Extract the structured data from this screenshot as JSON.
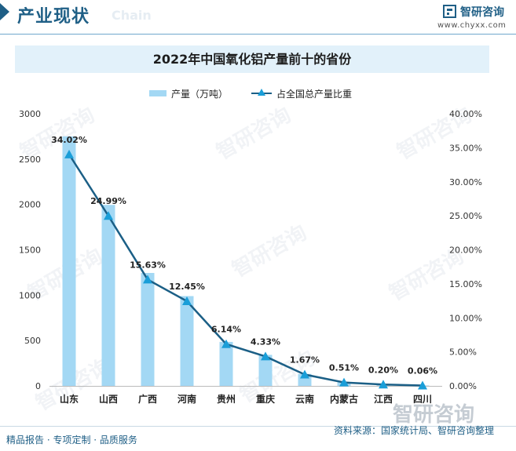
{
  "header": {
    "section_title": "产业现状",
    "ghost_text": "Chain",
    "brand_name": "智研咨询",
    "brand_url": "www.chyxx.com"
  },
  "watermark": {
    "text": "智研咨询"
  },
  "chart_data": {
    "type": "bar",
    "title": "2022年中国氧化铝产量前十的省份",
    "categories": [
      "山东",
      "山西",
      "广西",
      "河南",
      "贵州",
      "重庆",
      "云南",
      "内蒙古",
      "江西",
      "四川"
    ],
    "series": [
      {
        "name": "产量（万吨）",
        "type": "bar",
        "axis": "left",
        "values": [
          2750,
          1995,
          1245,
          990,
          485,
          342,
          132,
          40,
          16,
          5
        ]
      },
      {
        "name": "占全国总产量比重",
        "type": "line",
        "axis": "right",
        "values": [
          34.02,
          24.99,
          15.63,
          12.45,
          6.14,
          4.33,
          1.67,
          0.51,
          0.2,
          0.06
        ],
        "labels": [
          "34.02%",
          "24.99%",
          "15.63%",
          "12.45%",
          "6.14%",
          "4.33%",
          "1.67%",
          "0.51%",
          "0.20%",
          "0.06%"
        ]
      }
    ],
    "y_left": {
      "min": 0,
      "max": 3000,
      "ticks": [
        "0",
        "500",
        "1000",
        "1500",
        "2000",
        "2500",
        "3000"
      ]
    },
    "y_right": {
      "min": 0,
      "max": 40,
      "ticks": [
        "0.00%",
        "5.00%",
        "10.00%",
        "15.00%",
        "20.00%",
        "25.00%",
        "30.00%",
        "35.00%",
        "40.00%"
      ]
    },
    "legend_position": "top-center",
    "grid": false,
    "colors": {
      "bar": "#a3d8f4",
      "line": "#1b5f86",
      "marker": "#1a9ed8"
    }
  },
  "footer": {
    "left": "精品报告 · 专项定制 · 品质服务",
    "source": "资料来源：国家统计局、智研咨询整理",
    "brand_watermark": "智研咨询"
  }
}
